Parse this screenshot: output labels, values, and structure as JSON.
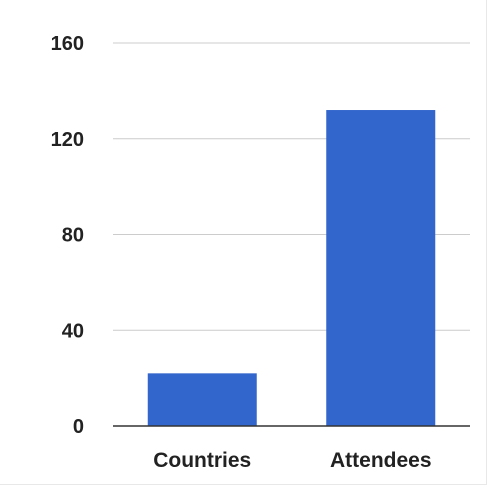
{
  "chart_data": {
    "type": "bar",
    "categories": [
      "Countries",
      "Attendees"
    ],
    "values": [
      22,
      132
    ],
    "title": "",
    "xlabel": "",
    "ylabel": "",
    "ylim": [
      0,
      160
    ],
    "yticks": [
      "0",
      "40",
      "80",
      "120",
      "160"
    ],
    "grid": true,
    "legend": "none",
    "colors": {
      "bar": "#3366cc",
      "grid": "#cccccc",
      "axis": "#333333",
      "text": "#222222"
    }
  }
}
